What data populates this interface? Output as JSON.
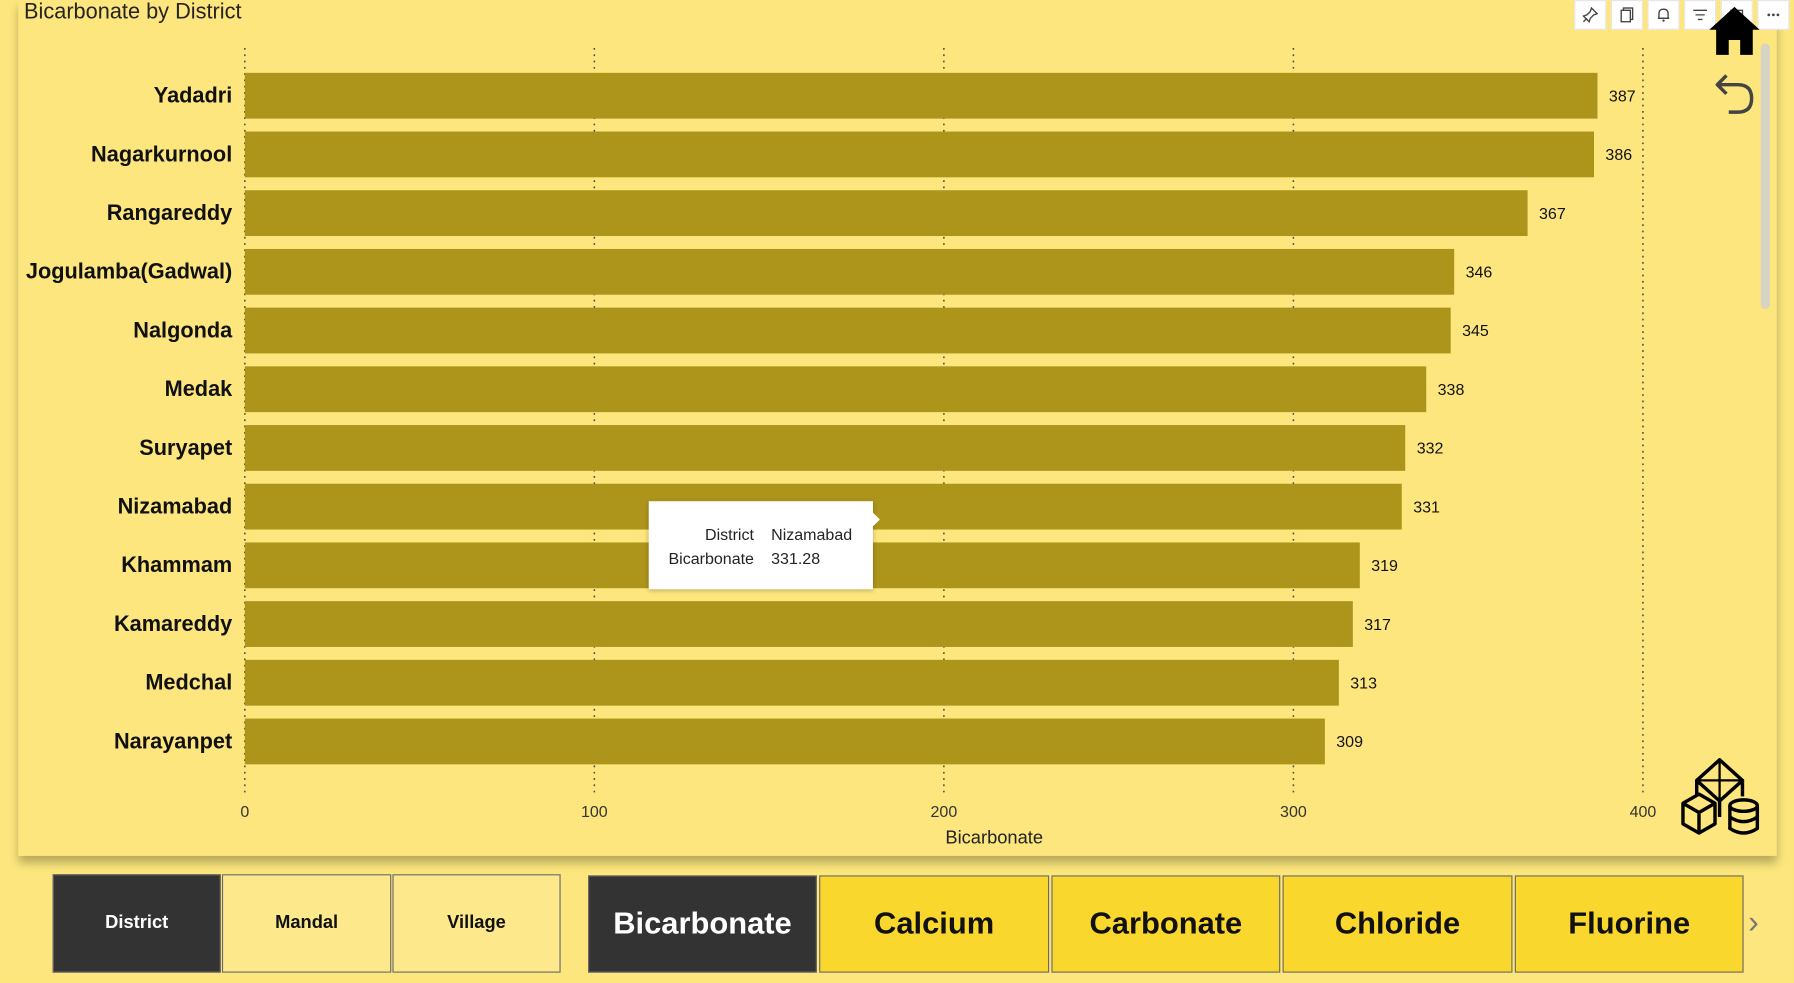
{
  "visual": {
    "title": "Bicarbonate by District",
    "tooltip": {
      "rows": [
        {
          "key": "District",
          "value": "Nizamabad"
        },
        {
          "key": "Bicarbonate",
          "value": "331.28"
        }
      ]
    },
    "toolbar_icons": [
      "pin-icon",
      "copy-icon",
      "bell-icon",
      "filter-icon",
      "focus-icon",
      "more-icon"
    ]
  },
  "chart_data": {
    "type": "bar",
    "orientation": "horizontal",
    "categories": [
      "Yadadri",
      "Nagarkurnool",
      "Rangareddy",
      "Jogulamba(Gadwal)",
      "Nalgonda",
      "Medak",
      "Suryapet",
      "Nizamabad",
      "Khammam",
      "Kamareddy",
      "Medchal",
      "Narayanpet"
    ],
    "values": [
      387,
      386,
      367,
      346,
      345,
      338,
      332,
      331,
      319,
      317,
      313,
      309
    ],
    "data_labels": [
      "387",
      "386",
      "367",
      "346",
      "345",
      "338",
      "332",
      "331",
      "319",
      "317",
      "313",
      "309"
    ],
    "xlabel": "Bicarbonate",
    "ylabel": "",
    "xlim": [
      0,
      400
    ],
    "x_ticks": [
      0,
      100,
      200,
      300,
      400
    ],
    "x_tick_labels": [
      "0",
      "100",
      "200",
      "300",
      "400"
    ],
    "grid": "vertical dotted",
    "bar_color": "#ad951b"
  },
  "level_tabs": {
    "items": [
      {
        "label": "District",
        "selected": true
      },
      {
        "label": "Mandal",
        "selected": false
      },
      {
        "label": "Village",
        "selected": false
      }
    ]
  },
  "measure_tabs": {
    "items": [
      {
        "label": "Bicarbonate",
        "selected": true
      },
      {
        "label": "Calcium",
        "selected": false
      },
      {
        "label": "Carbonate",
        "selected": false
      },
      {
        "label": "Chloride",
        "selected": false
      },
      {
        "label": "Fluorine",
        "selected": false
      }
    ]
  },
  "colors": {
    "background": "#fce67d",
    "bar": "#ad951b",
    "selected_tab": "#333333",
    "level_tab": "#fde98c",
    "measure_tab": "#f9d72d"
  }
}
